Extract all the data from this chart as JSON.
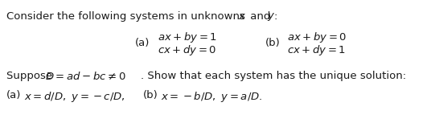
{
  "background_color": "#ffffff",
  "text_color": "#1a1a1a",
  "fig_width": 5.36,
  "fig_height": 1.58,
  "dpi": 100,
  "line1_plain": "Consider the following systems in unknowns ",
  "line1_x": "x",
  "line1_mid": " and ",
  "line1_y": "y",
  "line1_end": ":",
  "label_a": "(a)",
  "label_b": "(b)",
  "sys_a_line1": "$ax + by = 1$",
  "sys_a_line2": "$cx + dy = 0$",
  "sys_b_line1": "$ax + by = 0$",
  "sys_b_line2": "$cx + dy = 1$",
  "suppose_prefix": "Suppose ",
  "suppose_D": "$D = ad - bc \\neq 0$",
  "suppose_suffix": ". Show that each system has the unique solution:",
  "sol_a_label": "(a)",
  "sol_a_math": "$x = d/D,\\ y = -c/D,$",
  "sol_b_label": "(b)",
  "sol_b_math": "$x = -b/D,\\ y = a/D.$",
  "fontsize": 9.5,
  "fontsize_eq": 9.5
}
